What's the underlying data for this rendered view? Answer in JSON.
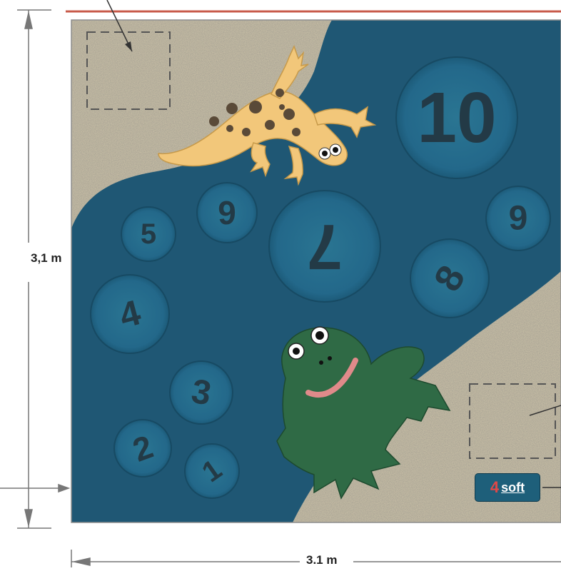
{
  "dimensions": {
    "height": "3,1 m",
    "width": "3.1 m"
  },
  "circles": [
    {
      "label": "1"
    },
    {
      "label": "2"
    },
    {
      "label": "3"
    },
    {
      "label": "4"
    },
    {
      "label": "5"
    },
    {
      "label": "6"
    },
    {
      "label": "7"
    },
    {
      "label": "8"
    },
    {
      "label": "9"
    },
    {
      "label": "10"
    }
  ],
  "logo": {
    "number": "4",
    "text": "soft"
  },
  "colors": {
    "pool": "#1f5774",
    "sand": "#cdc3a8",
    "lizard": "#f2c77a",
    "frog": "#2f6a45",
    "frame_line": "#c85a4a"
  }
}
